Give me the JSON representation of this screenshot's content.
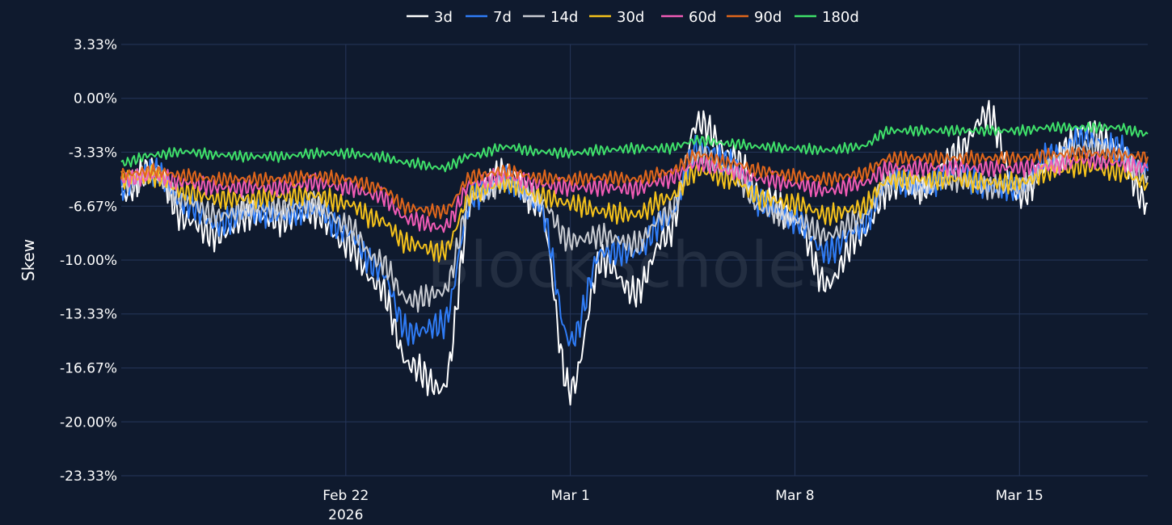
{
  "watermark": "BlockScholes",
  "chart_data": {
    "type": "line",
    "title": "",
    "xlabel": "",
    "ylabel": "Skew",
    "ylim": [
      -23.33,
      3.33
    ],
    "y_unit": "%",
    "yticks": [
      {
        "value": 3.33,
        "label": "3.33%"
      },
      {
        "value": 0,
        "label": "0.00%"
      },
      {
        "value": -3.33,
        "label": "-3.33%"
      },
      {
        "value": -6.67,
        "label": "-6.67%"
      },
      {
        "value": -10,
        "label": "-10.00%"
      },
      {
        "value": -13.33,
        "label": "-13.33%"
      },
      {
        "value": -16.67,
        "label": "-16.67%"
      },
      {
        "value": -20,
        "label": "-20.00%"
      },
      {
        "value": -23.33,
        "label": "-23.33%"
      }
    ],
    "xlim": [
      "2026-02-15",
      "2026-03-19"
    ],
    "xticks": [
      {
        "date": "2026-02-22",
        "label": "Feb 22",
        "sublabel": "2026"
      },
      {
        "date": "2026-03-01",
        "label": "Mar 1",
        "sublabel": ""
      },
      {
        "date": "2026-03-08",
        "label": "Mar 8",
        "sublabel": ""
      },
      {
        "date": "2026-03-15",
        "label": "Mar 15",
        "sublabel": ""
      }
    ],
    "grid": true,
    "legend_position": "top-center",
    "x": [
      "2026-02-15",
      "2026-02-16",
      "2026-02-17",
      "2026-02-18",
      "2026-02-19",
      "2026-02-20",
      "2026-02-21",
      "2026-02-22",
      "2026-02-23",
      "2026-02-24",
      "2026-02-25",
      "2026-02-26",
      "2026-02-27",
      "2026-02-28",
      "2026-03-01",
      "2026-03-02",
      "2026-03-03",
      "2026-03-04",
      "2026-03-05",
      "2026-03-06",
      "2026-03-07",
      "2026-03-08",
      "2026-03-09",
      "2026-03-10",
      "2026-03-11",
      "2026-03-12",
      "2026-03-13",
      "2026-03-14",
      "2026-03-15",
      "2026-03-16",
      "2026-03-17",
      "2026-03-18",
      "2026-03-19"
    ],
    "series": [
      {
        "name": "3d",
        "color": "#ffffff",
        "values": [
          -6.0,
          -4.2,
          -7.5,
          -8.5,
          -7.2,
          -7.5,
          -7.0,
          -9.0,
          -11.5,
          -16.5,
          -18.0,
          -6.0,
          -4.5,
          -6.5,
          -18.0,
          -10.0,
          -12.0,
          -8.5,
          -1.5,
          -3.5,
          -6.0,
          -7.5,
          -11.5,
          -8.5,
          -5.5,
          -5.5,
          -3.5,
          -1.0,
          -6.0,
          -4.0,
          -2.0,
          -3.0,
          -6.5
        ]
      },
      {
        "name": "7d",
        "color": "#2f7cf6",
        "values": [
          -5.5,
          -4.5,
          -6.5,
          -7.8,
          -7.0,
          -7.2,
          -6.8,
          -8.2,
          -10.5,
          -14.5,
          -14.0,
          -6.0,
          -5.0,
          -6.5,
          -15.0,
          -9.5,
          -9.5,
          -7.5,
          -3.0,
          -4.0,
          -6.5,
          -7.5,
          -9.5,
          -8.0,
          -5.0,
          -5.5,
          -4.5,
          -5.5,
          -5.5,
          -3.5,
          -2.5,
          -3.0,
          -4.5
        ]
      },
      {
        "name": "14d",
        "color": "#c9ccd2",
        "values": [
          -5.3,
          -4.8,
          -6.3,
          -7.3,
          -6.8,
          -6.8,
          -6.5,
          -7.8,
          -10.0,
          -12.5,
          -12.0,
          -6.0,
          -5.2,
          -6.2,
          -8.8,
          -8.5,
          -9.0,
          -7.2,
          -3.5,
          -4.5,
          -6.8,
          -7.5,
          -8.5,
          -7.5,
          -5.0,
          -5.5,
          -5.0,
          -5.5,
          -5.5,
          -4.0,
          -3.0,
          -3.5,
          -4.8
        ]
      },
      {
        "name": "30d",
        "color": "#f5c21b",
        "values": [
          -5.0,
          -4.8,
          -5.8,
          -6.2,
          -6.2,
          -6.0,
          -6.0,
          -6.5,
          -7.5,
          -9.0,
          -9.5,
          -5.8,
          -5.2,
          -6.0,
          -6.5,
          -7.0,
          -7.2,
          -6.2,
          -4.5,
          -5.0,
          -6.2,
          -6.5,
          -7.2,
          -6.8,
          -5.0,
          -5.0,
          -5.0,
          -5.2,
          -5.2,
          -4.5,
          -4.2,
          -4.5,
          -5.2
        ]
      },
      {
        "name": "60d",
        "color": "#f05bb5",
        "values": [
          -5.0,
          -4.8,
          -5.2,
          -5.5,
          -5.5,
          -5.5,
          -5.2,
          -5.5,
          -6.0,
          -7.5,
          -8.0,
          -5.2,
          -4.8,
          -5.3,
          -5.5,
          -5.5,
          -5.6,
          -5.0,
          -4.0,
          -4.5,
          -5.0,
          -5.3,
          -5.7,
          -5.3,
          -4.3,
          -4.3,
          -4.3,
          -4.3,
          -4.3,
          -4.2,
          -3.8,
          -4.0,
          -4.3
        ]
      },
      {
        "name": "90d",
        "color": "#e0661b",
        "values": [
          -4.7,
          -4.5,
          -4.8,
          -5.0,
          -5.0,
          -5.0,
          -4.8,
          -5.0,
          -5.5,
          -6.8,
          -7.0,
          -4.8,
          -4.5,
          -4.9,
          -5.0,
          -4.9,
          -5.0,
          -4.6,
          -3.5,
          -4.0,
          -4.5,
          -4.8,
          -5.0,
          -4.7,
          -3.7,
          -3.7,
          -3.7,
          -3.7,
          -3.7,
          -3.5,
          -3.4,
          -3.5,
          -3.6
        ]
      },
      {
        "name": "180d",
        "color": "#3fe06a",
        "values": [
          -4.0,
          -3.5,
          -3.3,
          -3.5,
          -3.6,
          -3.6,
          -3.4,
          -3.4,
          -3.6,
          -4.0,
          -4.3,
          -3.5,
          -3.0,
          -3.3,
          -3.4,
          -3.2,
          -3.1,
          -3.1,
          -2.6,
          -2.8,
          -3.0,
          -3.1,
          -3.2,
          -3.0,
          -2.0,
          -2.0,
          -2.0,
          -2.0,
          -2.0,
          -1.8,
          -1.8,
          -1.8,
          -2.2
        ]
      }
    ]
  }
}
